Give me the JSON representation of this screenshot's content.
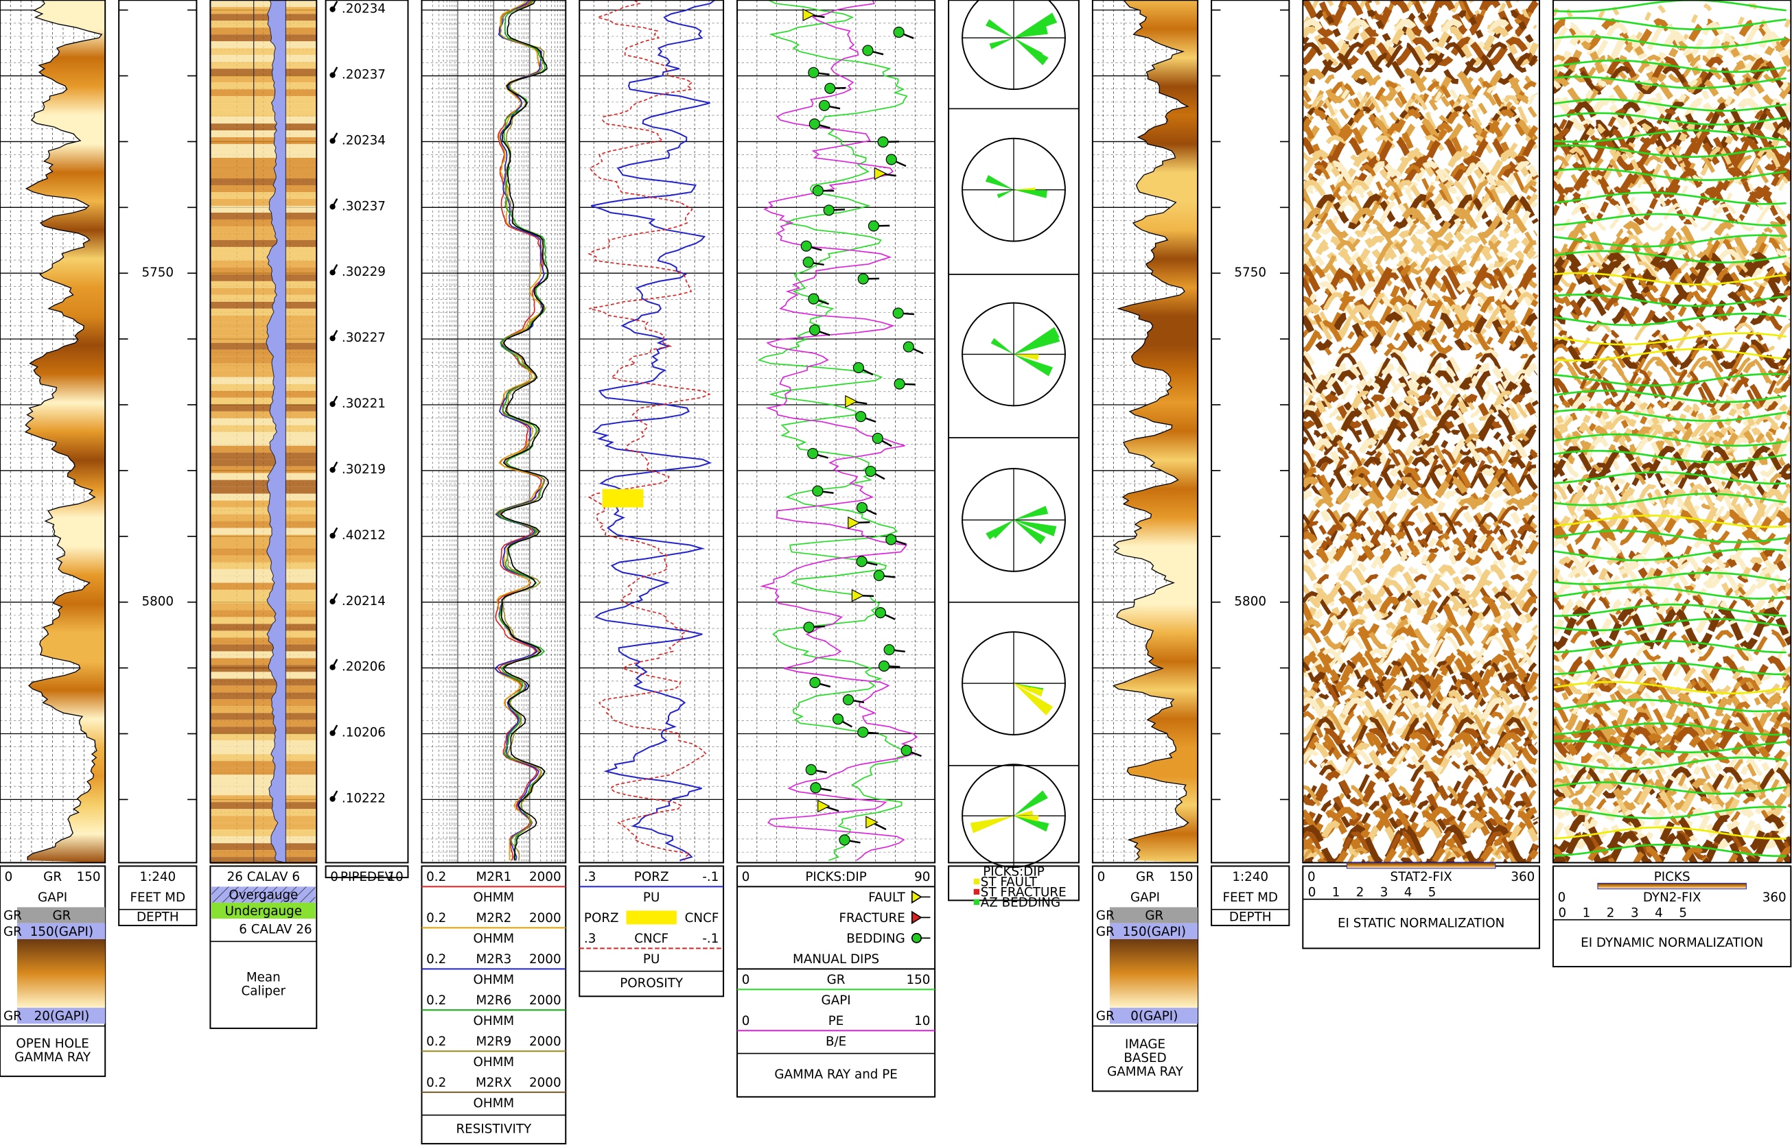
{
  "depth_axis": {
    "ylim": [
      5708.5,
      5839.6
    ],
    "ticks": [
      5750,
      5800
    ]
  },
  "tadpole_labels": [
    ".20234",
    ".20237",
    ".20234",
    ".30237",
    ".30229",
    ".30227",
    ".30221",
    ".30219",
    ".40212",
    ".20214",
    ".20206",
    ".10206",
    ".10222"
  ],
  "tracks": [
    {
      "rows": [
        [
          "0",
          "GR",
          "150"
        ],
        [
          "GAPI"
        ],
        [
          "GR",
          "GR"
        ],
        [
          "GR",
          "150(GAPI)"
        ],
        [
          "GR",
          "20(GAPI)"
        ]
      ],
      "title": [
        "OPEN HOLE",
        "GAMMA RAY"
      ]
    },
    {
      "rows": [
        [
          "1:240"
        ],
        [
          "FEET MD"
        ]
      ],
      "title": [
        "DEPTH"
      ]
    },
    {
      "rows": [
        [
          "26 CALAV 6"
        ],
        [
          "Overgauge"
        ],
        [
          "Undergauge"
        ],
        [
          "6 CALAV 26"
        ]
      ],
      "title": [
        "Mean",
        "Caliper"
      ]
    },
    {
      "rows": [
        [
          "0",
          "PIPEDEV",
          "10"
        ]
      ],
      "title": []
    },
    {
      "rows": [
        [
          "0.2",
          "M2R1",
          "2000"
        ],
        [
          "OHMM"
        ],
        [
          "0.2",
          "M2R2",
          "2000"
        ],
        [
          "OHMM"
        ],
        [
          "0.2",
          "M2R3",
          "2000"
        ],
        [
          "OHMM"
        ],
        [
          "0.2",
          "M2R6",
          "2000"
        ],
        [
          "OHMM"
        ],
        [
          "0.2",
          "M2R9",
          "2000"
        ],
        [
          "OHMM"
        ],
        [
          "0.2",
          "M2RX",
          "2000"
        ],
        [
          "OHMM"
        ]
      ],
      "title": [
        "RESISTIVITY"
      ]
    },
    {
      "rows": [
        [
          ".3",
          "PORZ",
          "-.1"
        ],
        [
          "PU"
        ],
        [
          "PORZ",
          "CNCF"
        ],
        [
          ".3",
          "CNCF",
          "-.1"
        ],
        [
          "PU"
        ]
      ],
      "title": [
        "POROSITY"
      ]
    },
    {
      "rows": [
        [
          "0",
          "PICKS:DIP",
          "90"
        ],
        [
          "FAULT"
        ],
        [
          "FRACTURE"
        ],
        [
          "BEDDING"
        ],
        [
          "MANUAL DIPS"
        ],
        [
          "0",
          "GR",
          "150"
        ],
        [
          "GAPI"
        ],
        [
          "0",
          "PE",
          "10"
        ],
        [
          "B/E"
        ]
      ],
      "title": [
        "GAMMA RAY and PE"
      ]
    },
    {
      "rows": [
        [
          "PICKS:DIP"
        ],
        [
          "ST FAULT"
        ],
        [
          "ST FRACTURE"
        ],
        [
          "AZ BEDDING"
        ]
      ],
      "title": []
    },
    {
      "rows": [
        [
          "0",
          "GR",
          "150"
        ],
        [
          "GAPI"
        ],
        [
          "GR",
          "GR"
        ],
        [
          "GR",
          "150(GAPI)"
        ],
        [
          "GR",
          "0(GAPI)"
        ]
      ],
      "title": [
        "IMAGE",
        "BASED",
        "GAMMA RAY"
      ]
    },
    {
      "rows": [
        [
          "1:240"
        ],
        [
          "FEET MD"
        ]
      ],
      "title": [
        "DEPTH"
      ]
    },
    {
      "rows": [
        [
          "0",
          "STAT2-FIX",
          "360"
        ],
        [
          "0",
          "1",
          "2",
          "3",
          "4",
          "5"
        ]
      ],
      "title": [
        "EI STATIC NORMALIZATION"
      ]
    },
    {
      "rows": [
        [
          "PICKS"
        ],
        [
          "0",
          "DYN2-FIX",
          "360"
        ],
        [
          "0",
          "1",
          "2",
          "3",
          "4",
          "5"
        ]
      ],
      "title": [
        "EI DYNAMIC NORMALIZATION"
      ]
    }
  ]
}
